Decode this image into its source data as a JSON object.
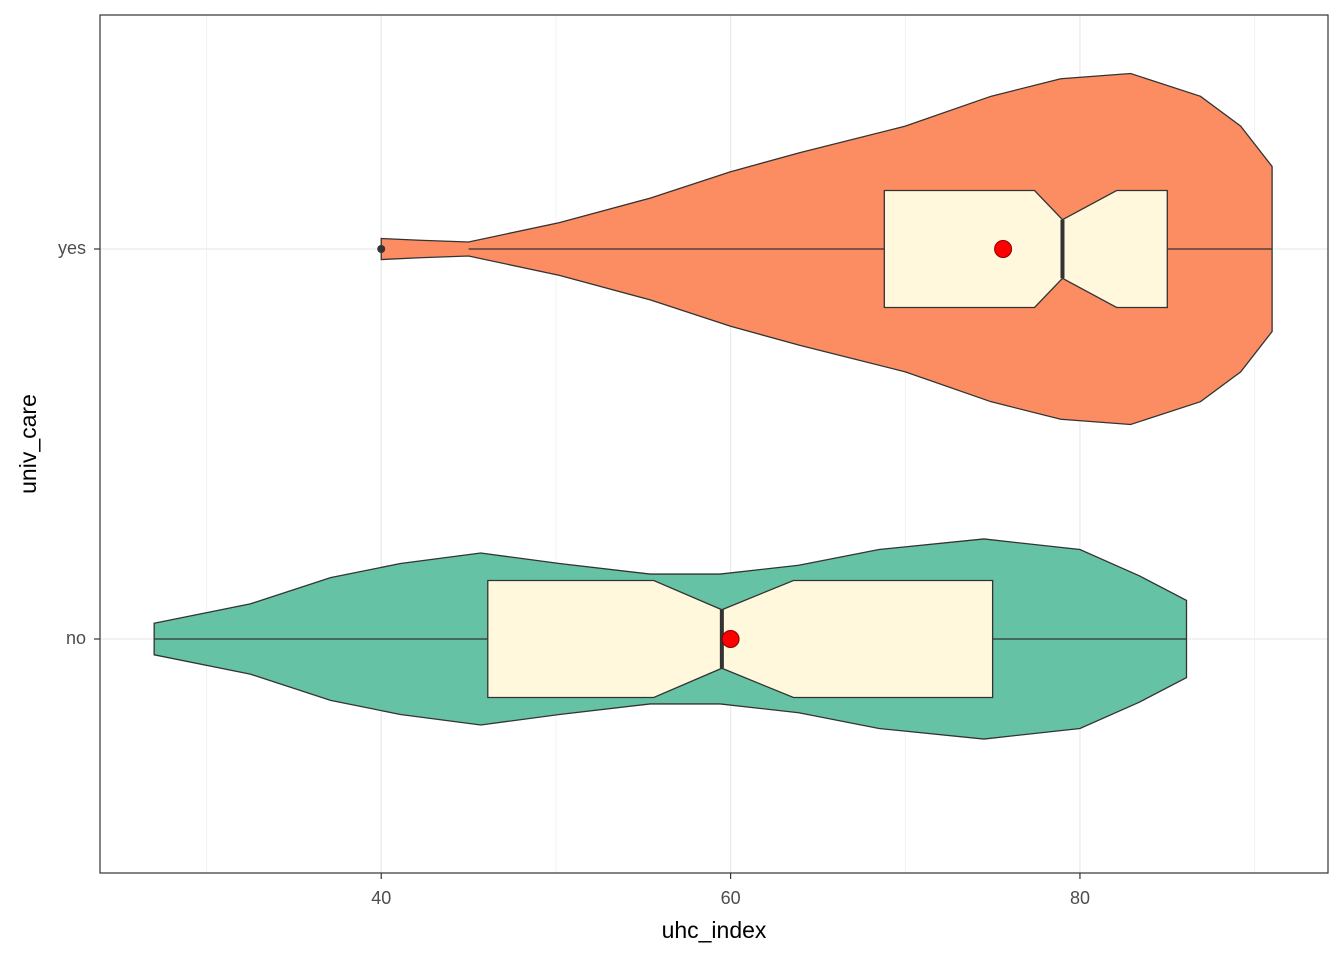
{
  "chart_data": {
    "type": "violin",
    "xlabel": "uhc_index",
    "ylabel": "univ_care",
    "categories": [
      "no",
      "yes"
    ],
    "xlim": [
      23.9,
      94.2
    ],
    "xticks": [
      40,
      60,
      80
    ],
    "xminor": [
      30,
      50,
      70,
      90
    ],
    "ylim": [
      0.4,
      2.6
    ],
    "grid": true,
    "box_fill": "#fff8dc",
    "mean_color": "#ff0000",
    "series": [
      {
        "color": "#66c2a5",
        "violin": {
          "x": [
            27,
            32.5,
            37.1,
            41.1,
            45.7,
            50.2,
            55.4,
            59.4,
            63.9,
            68.5,
            74.5,
            80,
            83.4,
            86.1
          ],
          "width": [
            0.09,
            0.2,
            0.35,
            0.43,
            0.49,
            0.43,
            0.37,
            0.37,
            0.42,
            0.51,
            0.57,
            0.51,
            0.36,
            0.22
          ]
        },
        "whisker_low": 27,
        "q1": 46.1,
        "notch_low": 55.6,
        "median": 59.5,
        "notch_high": 63.6,
        "q3": 75,
        "whisker_high": 86.1,
        "mean": 60
      },
      {
        "color": "#fc8d62",
        "violin": {
          "x": [
            40,
            42.2,
            45,
            50.2,
            55.4,
            60,
            64,
            70,
            74.9,
            78.9,
            82.9,
            86.9,
            89.2,
            91
          ],
          "width": [
            0.06,
            0.05,
            0.04,
            0.15,
            0.29,
            0.44,
            0.55,
            0.7,
            0.87,
            0.97,
            1,
            0.87,
            0.7,
            0.47
          ]
        },
        "whisker_low": 45,
        "q1": 68.8,
        "notch_low": 77.4,
        "median": 79,
        "notch_high": 82.1,
        "q3": 85,
        "whisker_high": 91,
        "mean": 75.6,
        "outliers": [
          40
        ]
      }
    ]
  }
}
